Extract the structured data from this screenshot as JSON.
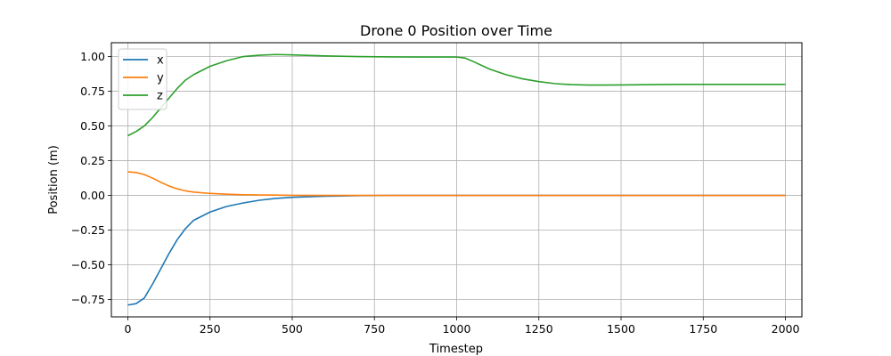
{
  "chart_data": {
    "type": "line",
    "title": "Drone 0 Position over Time",
    "xlabel": "Timestep",
    "ylabel": "Position (m)",
    "xlim": [
      -50,
      2050
    ],
    "ylim": [
      -0.875,
      1.1
    ],
    "xticks": [
      0,
      250,
      500,
      750,
      1000,
      1250,
      1500,
      1750,
      2000
    ],
    "xtick_labels": [
      "0",
      "250",
      "500",
      "750",
      "1000",
      "1250",
      "1500",
      "1750",
      "2000"
    ],
    "yticks": [
      -0.75,
      -0.5,
      -0.25,
      0.0,
      0.25,
      0.5,
      0.75,
      1.0
    ],
    "ytick_labels": [
      "−0.75",
      "−0.50",
      "−0.25",
      "0.00",
      "0.25",
      "0.50",
      "0.75",
      "1.00"
    ],
    "grid": true,
    "legend_position": "top-left",
    "x": [
      0,
      25,
      50,
      75,
      100,
      125,
      150,
      175,
      200,
      250,
      300,
      350,
      400,
      450,
      500,
      600,
      700,
      800,
      900,
      1000,
      1025,
      1050,
      1100,
      1150,
      1200,
      1250,
      1300,
      1350,
      1400,
      1450,
      1500,
      1600,
      1700,
      1800,
      1900,
      2000
    ],
    "series": [
      {
        "name": "x",
        "color": "#1f77b4",
        "values": [
          -0.79,
          -0.78,
          -0.74,
          -0.64,
          -0.53,
          -0.42,
          -0.32,
          -0.24,
          -0.18,
          -0.12,
          -0.08,
          -0.055,
          -0.035,
          -0.022,
          -0.014,
          -0.006,
          -0.002,
          0.0,
          0.0,
          0.0,
          0.0,
          0.0,
          0.0,
          0.0,
          0.0,
          0.0,
          0.0,
          0.0,
          0.0,
          0.0,
          0.0,
          0.0,
          0.0,
          0.0,
          0.0,
          0.0
        ]
      },
      {
        "name": "y",
        "color": "#ff7f0e",
        "values": [
          0.17,
          0.165,
          0.15,
          0.125,
          0.095,
          0.068,
          0.047,
          0.033,
          0.024,
          0.014,
          0.009,
          0.005,
          0.003,
          0.002,
          0.001,
          0.0,
          0.0,
          0.0,
          0.0,
          0.0,
          0.0,
          0.0,
          0.0,
          0.0,
          0.0,
          0.0,
          0.0,
          0.0,
          0.0,
          0.0,
          0.0,
          0.0,
          0.0,
          0.0,
          0.0,
          0.0
        ]
      },
      {
        "name": "z",
        "color": "#2ca02c",
        "values": [
          0.43,
          0.46,
          0.5,
          0.56,
          0.63,
          0.7,
          0.77,
          0.83,
          0.87,
          0.93,
          0.97,
          1.0,
          1.01,
          1.015,
          1.012,
          1.005,
          1.0,
          0.998,
          0.997,
          0.997,
          0.99,
          0.965,
          0.91,
          0.87,
          0.84,
          0.82,
          0.805,
          0.798,
          0.795,
          0.795,
          0.796,
          0.798,
          0.8,
          0.8,
          0.8,
          0.8
        ]
      }
    ]
  }
}
